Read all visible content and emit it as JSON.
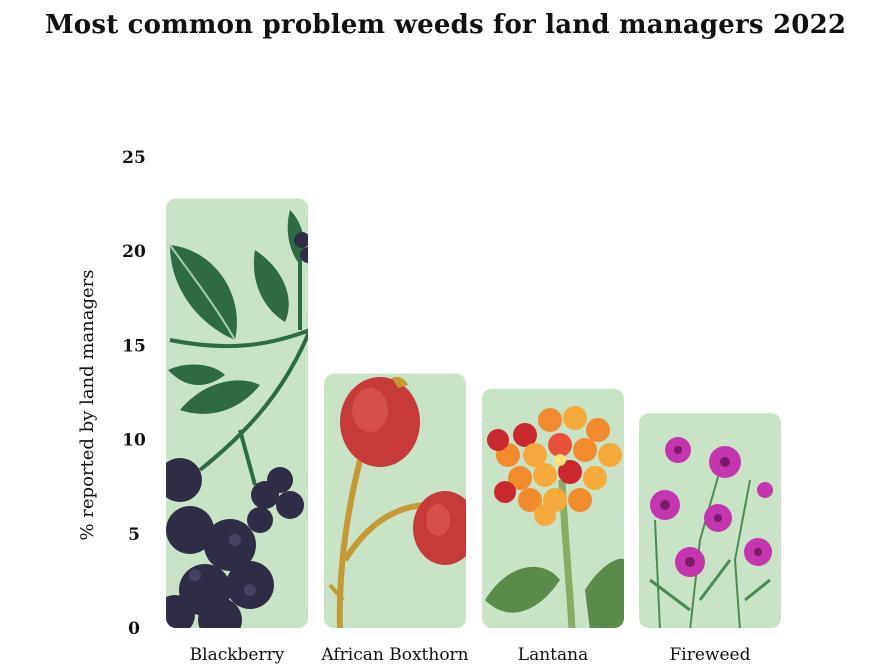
{
  "chart_data": {
    "type": "bar",
    "title": "Most common problem weeds for land managers 2022",
    "ylabel": "% reported by land managers",
    "xlabel": "",
    "categories": [
      "Blackberry",
      "African Boxthorn",
      "Lantana",
      "Fireweed"
    ],
    "values": [
      22.8,
      13.5,
      12.7,
      11.4
    ],
    "ylim": [
      0,
      25
    ],
    "yticks": [
      "0",
      "5",
      "10",
      "15",
      "20",
      "25"
    ],
    "grid": false,
    "legend": "none",
    "colors": {
      "bar_background": "#c8e3c6",
      "leaf": "#2e6b45",
      "berry": "#2f2d45",
      "boxthorn_berry": "#c63a3a",
      "boxthorn_stem": "#c59a35",
      "lantana_orange": "#f28a2e",
      "lantana_red": "#c9282e",
      "fireweed_magenta": "#c436b0"
    },
    "icons": [
      "blackberry-illustration",
      "boxthorn-illustration",
      "lantana-illustration",
      "fireweed-illustration"
    ]
  }
}
